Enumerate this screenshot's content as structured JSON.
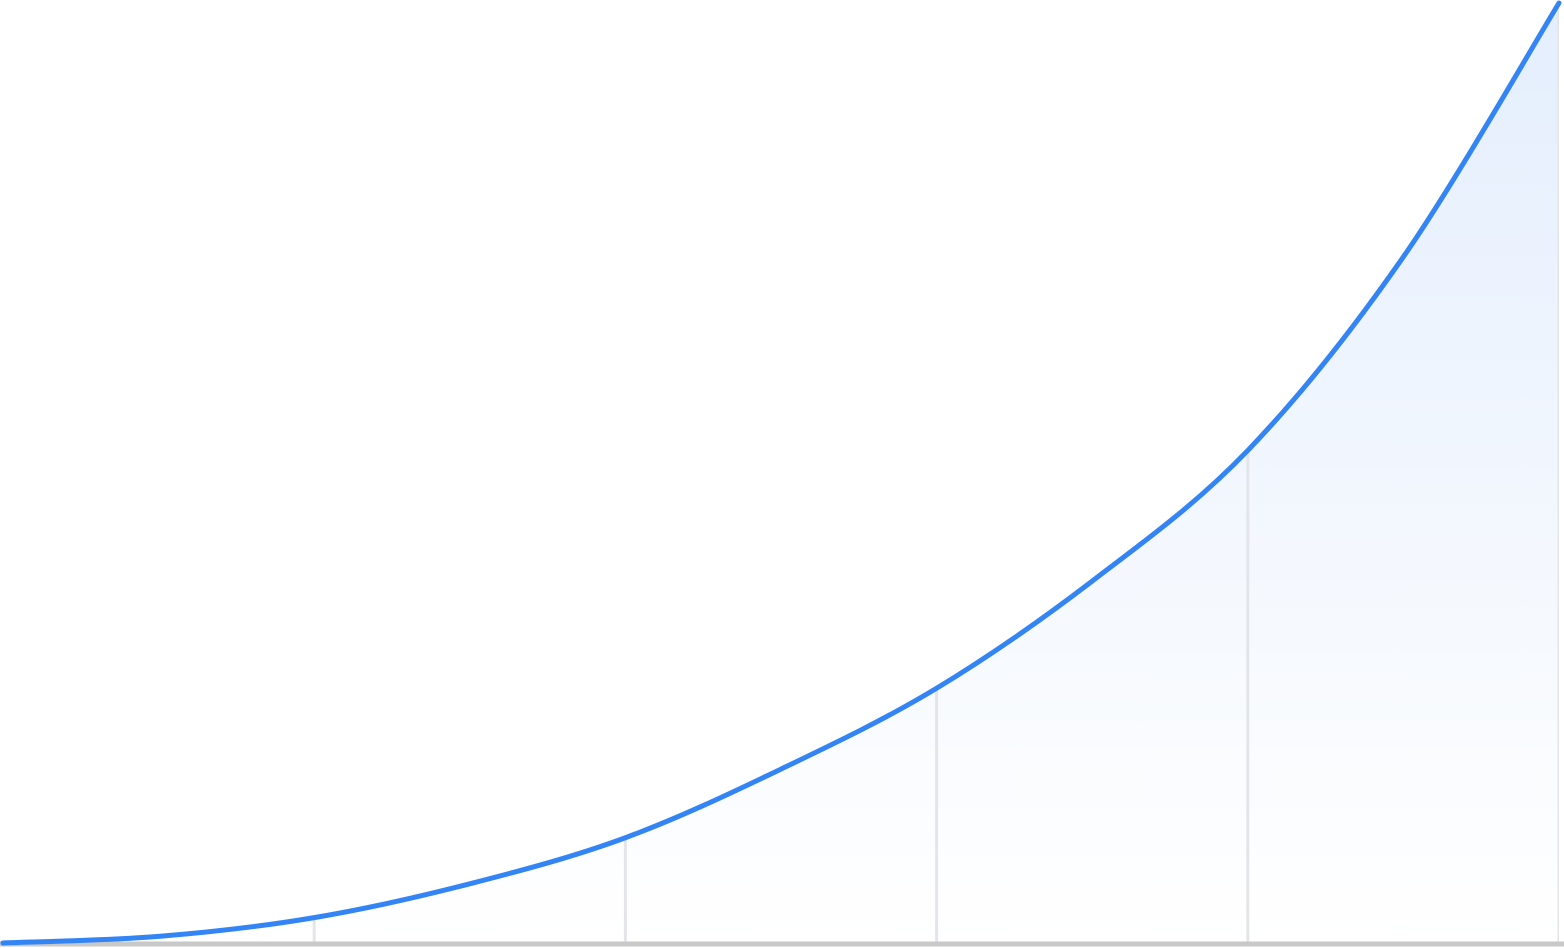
{
  "chart_data": {
    "type": "area",
    "x": [
      0,
      1,
      2,
      3,
      4,
      5,
      6,
      7,
      8,
      9,
      10
    ],
    "values": [
      0,
      0.7,
      2.7,
      6.3,
      11.2,
      18.5,
      27.1,
      38.5,
      52.4,
      73,
      100
    ],
    "color": "#3384f5",
    "xlim": [
      0,
      10
    ],
    "xticks": [
      2,
      4,
      6,
      8,
      10
    ],
    "ylim": [
      0,
      100
    ],
    "grid": true
  }
}
